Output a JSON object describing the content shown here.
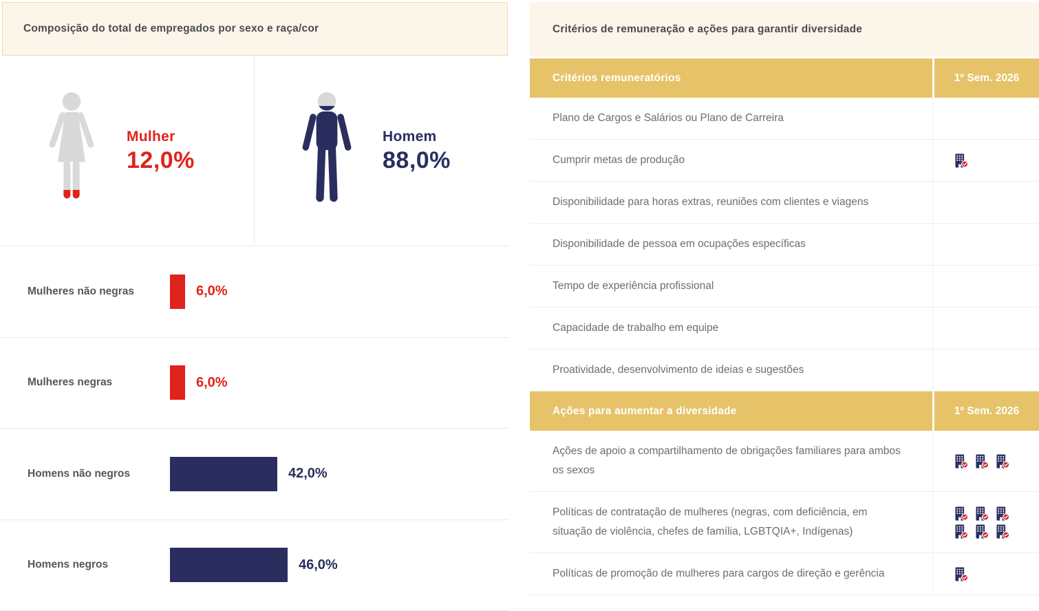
{
  "colors": {
    "red": "#E0231C",
    "navy": "#2A2E5F",
    "gold": "#E6C269",
    "cream": "#FCF5EA",
    "cream_border": "#F2DCA2",
    "figure_gray": "#D9D9D9",
    "badge_red": "#D7232E"
  },
  "chart_data": [
    {
      "type": "bar",
      "title": "Composição do total de empregados por sexo e raça/cor",
      "orientation": "horizontal",
      "unit": "%",
      "grid": false,
      "legend": false,
      "xlim": [
        0,
        50
      ],
      "summary": [
        {
          "label": "Mulher",
          "value": 12.0,
          "display": "12,0%",
          "color": "#E0231C",
          "icon": "woman-icon"
        },
        {
          "label": "Homem",
          "value": 88.0,
          "display": "88,0%",
          "color": "#2A2E5F",
          "icon": "man-icon"
        }
      ],
      "categories": [
        "Mulheres não negras",
        "Mulheres negras",
        "Homens não negros",
        "Homens negros"
      ],
      "values": [
        6.0,
        6.0,
        42.0,
        46.0
      ],
      "value_labels": [
        "6,0%",
        "6,0%",
        "42,0%",
        "46,0%"
      ],
      "bar_colors": [
        "#E0231C",
        "#E0231C",
        "#2A2E5F",
        "#2A2E5F"
      ]
    },
    {
      "type": "table",
      "title": "Critérios de remuneração e ações para garantir diversidade",
      "value_icon": "building-check-icon",
      "sections": [
        {
          "header": "Critérios remuneratórios",
          "period_column": "1º Sem. 2026",
          "rows": [
            {
              "label": "Plano de Cargos e Salários ou Plano de Carreira",
              "icon_count": 0
            },
            {
              "label": "Cumprir metas de produção",
              "icon_count": 1
            },
            {
              "label": "Disponibilidade para horas extras, reuniões com clientes e viagens",
              "icon_count": 0
            },
            {
              "label": "Disponibilidade de pessoa em ocupações específicas",
              "icon_count": 0
            },
            {
              "label": "Tempo de experiência profissional",
              "icon_count": 0
            },
            {
              "label": "Capacidade de trabalho em equipe",
              "icon_count": 0
            },
            {
              "label": "Proatividade, desenvolvimento de ideias e sugestões",
              "icon_count": 0
            }
          ]
        },
        {
          "header": "Ações para aumentar a diversidade",
          "period_column": "1º Sem. 2026",
          "rows": [
            {
              "label": "Ações de apoio a compartilhamento de obrigações familiares para ambos os sexos",
              "icon_count": 3
            },
            {
              "label": "Políticas de contratação de mulheres (negras, com deficiência, em situação de violência, chefes de família, LGBTQIA+, Indígenas)",
              "icon_count": 6
            },
            {
              "label": "Políticas de promoção de mulheres para cargos de direção e gerência",
              "icon_count": 1
            }
          ]
        }
      ]
    }
  ]
}
